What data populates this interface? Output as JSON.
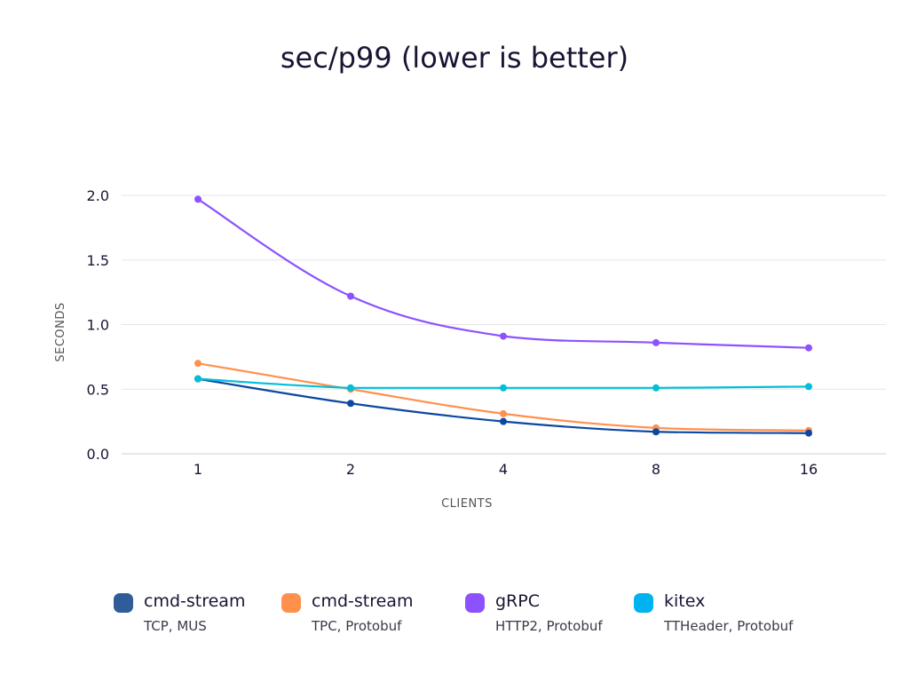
{
  "chart_data": {
    "type": "line",
    "title": "sec/p99 (lower is better)",
    "xlabel": "CLIENTS",
    "ylabel": "SECONDS",
    "categories": [
      "1",
      "2",
      "4",
      "8",
      "16"
    ],
    "ylim": [
      0,
      2.0
    ],
    "yticks": [
      "0.0",
      "0.5",
      "1.0",
      "1.5",
      "2.0"
    ],
    "grid": true,
    "legend_position": "bottom",
    "series": [
      {
        "name": "cmd-stream",
        "subtitle": "TCP, MUS",
        "color": "#0d47a1",
        "legend_color": "#2f5d9a",
        "values": [
          0.58,
          0.39,
          0.25,
          0.17,
          0.16
        ]
      },
      {
        "name": "cmd-stream",
        "subtitle": "TPC, Protobuf",
        "color": "#ff914d",
        "legend_color": "#ff914d",
        "values": [
          0.7,
          0.5,
          0.31,
          0.2,
          0.18
        ]
      },
      {
        "name": "gRPC",
        "subtitle": "HTTP2, Protobuf",
        "color": "#8c52ff",
        "legend_color": "#8c52ff",
        "values": [
          1.97,
          1.22,
          0.91,
          0.86,
          0.82
        ]
      },
      {
        "name": "kitex",
        "subtitle": "TTHeader, Protobuf",
        "color": "#00bfd8",
        "legend_color": "#00b2f0",
        "values": [
          0.58,
          0.51,
          0.51,
          0.51,
          0.52
        ]
      }
    ]
  }
}
